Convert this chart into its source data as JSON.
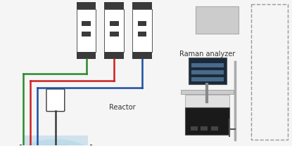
{
  "background_color": "#f5f5f5",
  "line_green": {
    "color": "#2a8a2a",
    "lw": 1.8
  },
  "line_red": {
    "color": "#cc2020",
    "lw": 1.8
  },
  "line_blue": {
    "color": "#1a4fa0",
    "lw": 1.8
  },
  "reactor_label": "Reactor",
  "raman_label": "Raman analyzer",
  "pump_dark": "#3a3a3a",
  "pump_light": "#ffffff",
  "reactor_dark": "#3a3a3a",
  "reactor_liquid": "#b8d8e8",
  "raman_dark": "#222222",
  "raman_mid": "#e8e8e8",
  "raman_screen_bg": "#2a3a4a",
  "monitor_gray": "#cccccc",
  "dashed_color": "#999999"
}
